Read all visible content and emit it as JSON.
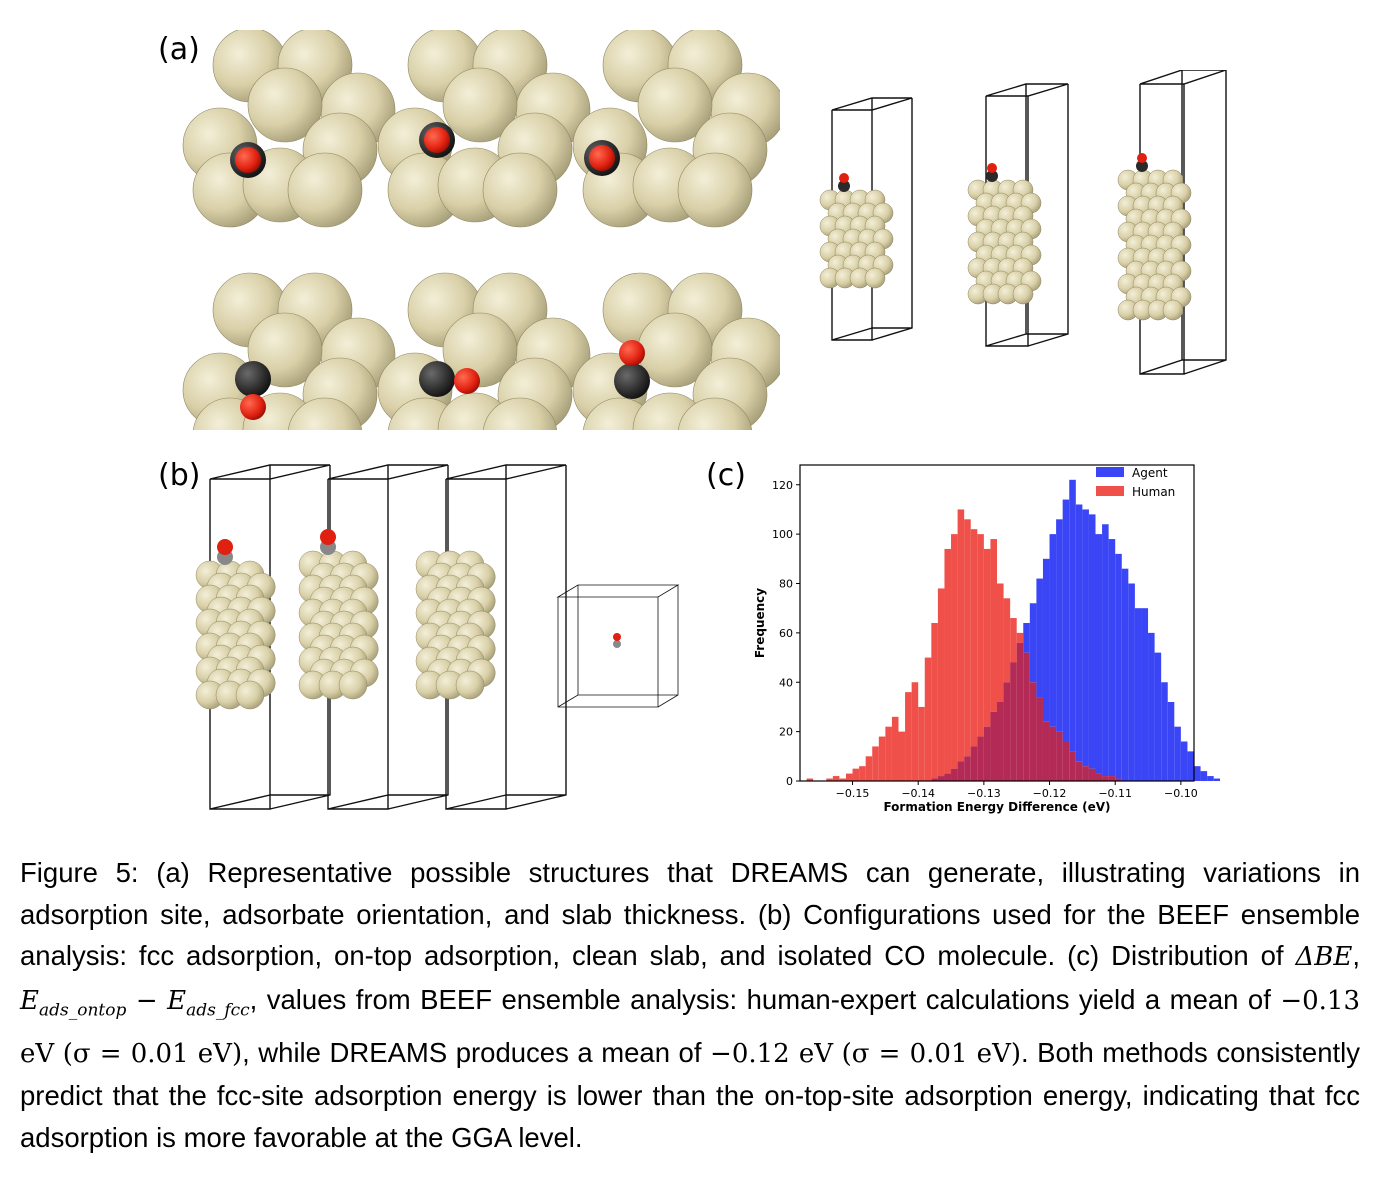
{
  "labels": {
    "a": "(a)",
    "b": "(b)",
    "c": "(c)"
  },
  "colors": {
    "metal": "#d9d0a8",
    "metal_dark": "#a39a72",
    "oxygen": "#e02010",
    "carbon": "#2a2a2a",
    "carbon_light": "#888888",
    "agent": "#3a46f5",
    "human": "#f0504a",
    "overlap": "#b22a55"
  },
  "caption": {
    "fig": "Figure 5:",
    "text_a": "(a) Representative possible structures that DREAMS can generate, illustrating variations in adsorption site, adsorbate orientation, and slab thickness.",
    "text_b": "(b) Configurations used for the BEEF ensemble analysis: fcc adsorption, on-top adsorption, clean slab, and isolated CO molecule.",
    "text_c1": "(c) Distribution of",
    "delta": "ΔBE",
    "e_ontop": "E",
    "sub_ontop": "ads_ontop",
    "minus": "−",
    "e_fcc": "E",
    "sub_fcc": "ads_fcc",
    "text_c2": ", values from BEEF ensemble analysis: human-expert calculations yield a mean of",
    "mean_h": "−0.13 eV",
    "sigma_h": "(σ = 0.01 eV)",
    "text_c3": ", while DREAMS produces a mean of",
    "mean_a": "−0.12 eV",
    "sigma_a": "(σ = 0.01 eV)",
    "text_c4": ". Both methods consistently predict that the fcc-site adsorption energy is lower than the on-top-site adsorption energy, indicating that fcc adsorption is more favorable at the GGA level."
  },
  "chart_data": {
    "type": "bar",
    "title": "",
    "xlabel": "Formation Energy Difference (eV)",
    "ylabel": "Frequency",
    "xlim": [
      -0.158,
      -0.098
    ],
    "ylim": [
      0,
      128
    ],
    "xticks": [
      "−0.15",
      "−0.14",
      "−0.13",
      "−0.12",
      "−0.11",
      "−0.10"
    ],
    "xtick_values": [
      -0.15,
      -0.14,
      -0.13,
      -0.12,
      -0.11,
      -0.1
    ],
    "yticks": [
      0,
      20,
      40,
      60,
      80,
      100,
      120
    ],
    "legend_position": "top-right",
    "bins": {
      "x_start": -0.157,
      "width": 0.001
    },
    "series": [
      {
        "name": "Agent",
        "values": [
          0,
          0,
          0,
          0,
          0,
          0,
          0,
          0,
          0,
          0,
          0,
          0,
          0,
          0,
          0,
          0,
          0,
          0,
          0,
          1,
          2,
          3,
          5,
          8,
          10,
          14,
          18,
          22,
          28,
          32,
          40,
          48,
          56,
          64,
          72,
          82,
          90,
          100,
          106,
          114,
          122,
          112,
          110,
          108,
          100,
          104,
          98,
          92,
          86,
          80,
          70,
          70,
          60,
          52,
          40,
          32,
          22,
          16,
          12,
          6,
          4,
          2,
          1,
          0,
          0
        ]
      },
      {
        "name": "Human",
        "values": [
          1,
          0,
          0,
          1,
          2,
          1,
          3,
          5,
          6,
          10,
          14,
          18,
          22,
          26,
          20,
          36,
          40,
          30,
          50,
          64,
          78,
          94,
          100,
          110,
          106,
          102,
          100,
          94,
          98,
          80,
          74,
          66,
          60,
          52,
          40,
          34,
          24,
          22,
          20,
          16,
          12,
          8,
          6,
          5,
          3,
          2,
          2,
          1,
          0,
          0,
          0,
          0,
          0,
          0,
          0,
          0,
          0,
          0,
          0,
          0,
          0,
          0,
          0,
          0,
          0
        ]
      }
    ],
    "legend": [
      "Agent",
      "Human"
    ]
  }
}
